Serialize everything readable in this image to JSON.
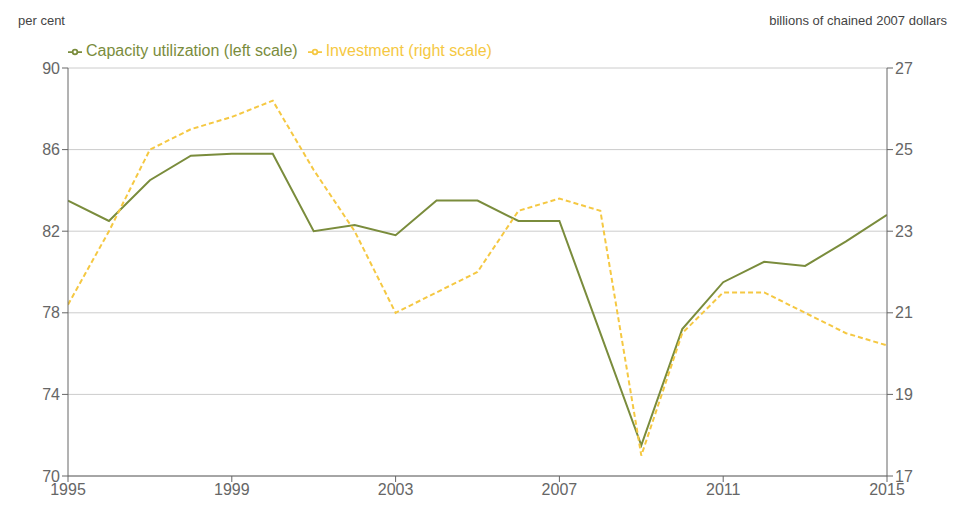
{
  "chart_data": {
    "type": "line",
    "ylabel": "per cent",
    "y2label": "billions of chained 2007 dollars",
    "x": [
      1995,
      1996,
      1997,
      1998,
      1999,
      2000,
      2001,
      2002,
      2003,
      2004,
      2005,
      2006,
      2007,
      2008,
      2009,
      2010,
      2011,
      2012,
      2013,
      2014,
      2015
    ],
    "xlim": [
      1995,
      2015
    ],
    "xticks": [
      1995,
      1999,
      2003,
      2007,
      2011,
      2015
    ],
    "ylim": [
      70,
      90
    ],
    "yticks": [
      70,
      74,
      78,
      82,
      86,
      90
    ],
    "y2lim": [
      17,
      27
    ],
    "y2ticks": [
      17,
      19,
      21,
      23,
      25,
      27
    ],
    "grid": true,
    "legend": "upper left",
    "series": [
      {
        "name": "Capacity utilization (left scale)",
        "color": "#7a8c3c",
        "line_style": "solid",
        "axis": "y",
        "values": [
          83.5,
          82.5,
          84.5,
          85.7,
          85.8,
          85.8,
          82.0,
          82.3,
          81.8,
          83.5,
          83.5,
          82.5,
          82.5,
          77.0,
          71.5,
          77.2,
          79.5,
          80.5,
          80.3,
          81.5,
          82.8
        ]
      },
      {
        "name": "Investment (right scale)",
        "color": "#f5c842",
        "line_style": "dashed",
        "axis": "y2",
        "values": [
          21.2,
          23.0,
          25.0,
          25.5,
          25.8,
          26.2,
          24.5,
          23.0,
          21.0,
          21.5,
          22.0,
          23.5,
          23.8,
          23.5,
          17.5,
          20.5,
          21.5,
          21.5,
          21.0,
          20.5,
          20.2
        ]
      }
    ]
  }
}
